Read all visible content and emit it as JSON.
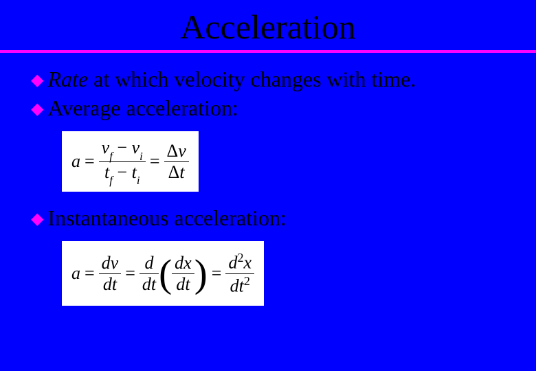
{
  "title": "Acceleration",
  "bullets": {
    "b1_italic": "Rate",
    "b1_rest": " at which velocity changes with time.",
    "b2": "Average acceleration:",
    "b3": "Instantaneous acceleration:"
  },
  "colors": {
    "background": "#0000ff",
    "divider": "#ff00ff",
    "bullet_icon": "#ff00ff",
    "text": "#000000",
    "equation_bg": "#ffffff"
  },
  "typography": {
    "title_fontsize": 50,
    "body_fontsize": 32,
    "equation_fontsize": 26
  },
  "equations": {
    "eq1": {
      "lhs": "a",
      "frac1_top_left": "v",
      "frac1_top_left_sub": "f",
      "frac1_top_mid": " − ",
      "frac1_top_right": "v",
      "frac1_top_right_sub": "i",
      "frac1_bot_left": "t",
      "frac1_bot_left_sub": "f",
      "frac1_bot_mid": " − ",
      "frac1_bot_right": "t",
      "frac1_bot_right_sub": "i",
      "frac2_top": "Δv",
      "frac2_bot": "Δt"
    },
    "eq2": {
      "lhs": "a",
      "frac1_top": "dv",
      "frac1_bot": "dt",
      "frac2_outer_top": "d",
      "frac2_outer_bot": "dt",
      "frac2_inner_top": "dx",
      "frac2_inner_bot": "dt",
      "frac3_top_base": "d",
      "frac3_top_exp": "2",
      "frac3_top_var": "x",
      "frac3_bot_base": "dt",
      "frac3_bot_exp": "2"
    }
  }
}
